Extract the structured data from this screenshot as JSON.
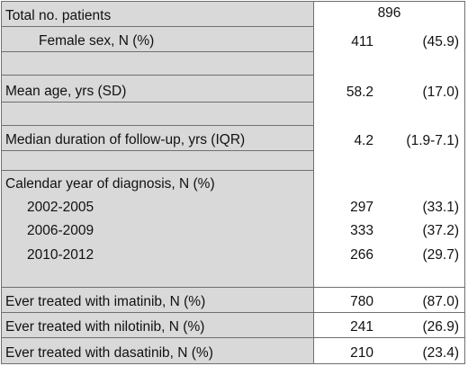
{
  "table": {
    "total_patients": {
      "label": "Total no. patients",
      "value": "896"
    },
    "female_sex": {
      "label": "Female sex, N (%)",
      "n": "411",
      "pct": "(45.9)"
    },
    "mean_age": {
      "label": "Mean age, yrs (SD)",
      "n": "58.2",
      "pct": "(17.0)"
    },
    "median_followup": {
      "label": "Median duration of follow-up, yrs (IQR)",
      "n": "4.2",
      "pct": "(1.9-7.1)"
    },
    "calendar_year": {
      "label": "Calendar year of diagnosis, N (%)",
      "rows": [
        {
          "label": "2002-2005",
          "n": "297",
          "pct": "(33.1)"
        },
        {
          "label": "2006-2009",
          "n": "333",
          "pct": "(37.2)"
        },
        {
          "label": "2010-2012",
          "n": "266",
          "pct": "(29.7)"
        }
      ]
    },
    "imatinib": {
      "label": "Ever treated with imatinib, N (%)",
      "n": "780",
      "pct": "(87.0)"
    },
    "nilotinib": {
      "label": "Ever treated with nilotinib, N (%)",
      "n": "241",
      "pct": "(26.9)"
    },
    "dasatinib": {
      "label": "Ever treated with dasatinib, N (%)",
      "n": "210",
      "pct": "(23.4)"
    }
  }
}
